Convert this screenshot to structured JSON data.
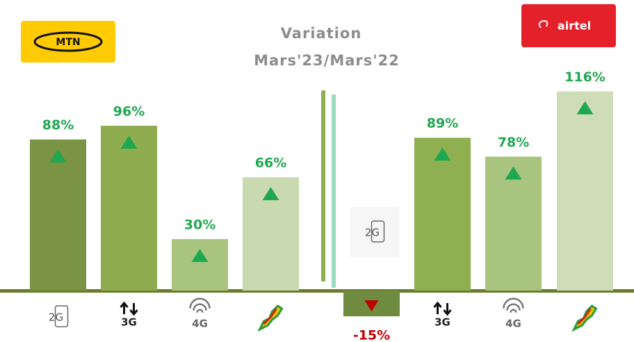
{
  "chart_data": {
    "type": "bar",
    "title": "Variation",
    "subtitle": "Mars'23/Mars'22",
    "categories": [
      "2G",
      "3G",
      "4G",
      null
    ],
    "series": [
      {
        "name": "MTN",
        "values": [
          88,
          96,
          30,
          66
        ],
        "value_labels": [
          "88%",
          "96%",
          "30%",
          "66%"
        ],
        "colors": [
          "#7a9344",
          "#8fad4f",
          "#a9c47f",
          "#c9d9b0"
        ]
      },
      {
        "name": "airtel",
        "values": [
          -15,
          89,
          78,
          116
        ],
        "value_labels": [
          "-15%",
          "89%",
          "78%",
          "116%"
        ],
        "colors": [
          "#6f8b3f",
          "#8fb050",
          "#a9c47f",
          "#cfdcb8"
        ]
      }
    ],
    "label_color": "#1fa84f",
    "negative_color": "#c00000"
  }
}
